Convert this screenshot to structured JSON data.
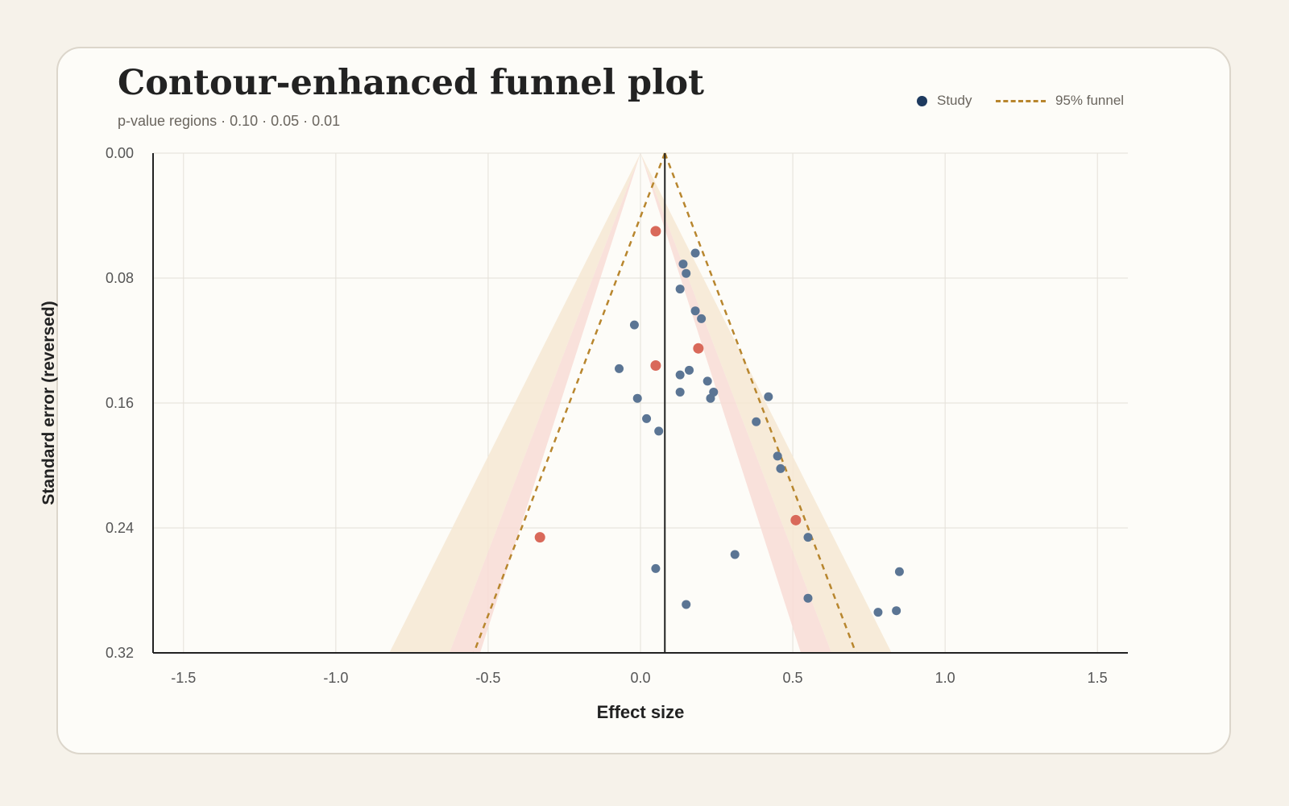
{
  "title": "Contour-enhanced funnel plot",
  "subtitle": "p-value regions · 0.10 · 0.05 · 0.01",
  "legend": {
    "study_label": "Study",
    "funnel_label": "95% funnel"
  },
  "colors": {
    "study": "#5b7594",
    "study_legend": "#1e3a5f",
    "highlight": "#d9695a",
    "funnel": "#b8862e",
    "region_outer": "#f6e7d4",
    "region_inner": "#f8dcd6",
    "grid": "#e4e0d8",
    "axis": "#222222"
  },
  "chart_data": {
    "type": "scatter",
    "title": "Contour-enhanced funnel plot",
    "subtitle": "p-value regions · 0.10 · 0.05 · 0.01",
    "xlabel": "Effect size",
    "ylabel": "Standard error (reversed)",
    "xlim": [
      -1.6,
      1.6
    ],
    "ylim": [
      0,
      0.32
    ],
    "y_reversed": true,
    "xticks": [
      -1.5,
      -1.0,
      -0.5,
      0.0,
      0.5,
      1.0,
      1.5
    ],
    "xtick_labels": [
      "-1.5",
      "-1.0",
      "-0.5",
      "0.0",
      "0.5",
      "1.0",
      "1.5"
    ],
    "yticks": [
      0,
      0.08,
      0.16,
      0.24,
      0.32
    ],
    "ytick_labels": [
      "0.00",
      "0.08",
      "0.16",
      "0.24",
      "0.32"
    ],
    "grid": true,
    "legend_position": "top-right",
    "pooled_effect": 0.08,
    "funnel_level": "95%",
    "contour_levels": [
      0.1,
      0.05,
      0.01
    ],
    "series": [
      {
        "name": "Study",
        "points": [
          [
            0.05,
            0.05
          ],
          [
            0.18,
            0.064
          ],
          [
            0.14,
            0.071
          ],
          [
            0.15,
            0.077
          ],
          [
            0.13,
            0.087
          ],
          [
            0.18,
            0.101
          ],
          [
            0.2,
            0.106
          ],
          [
            -0.02,
            0.11
          ],
          [
            0.19,
            0.125
          ],
          [
            0.05,
            0.136
          ],
          [
            -0.07,
            0.138
          ],
          [
            0.16,
            0.139
          ],
          [
            0.13,
            0.142
          ],
          [
            0.22,
            0.146
          ],
          [
            0.13,
            0.153
          ],
          [
            0.24,
            0.153
          ],
          [
            0.23,
            0.157
          ],
          [
            0.42,
            0.156
          ],
          [
            -0.01,
            0.157
          ],
          [
            0.38,
            0.172
          ],
          [
            0.02,
            0.17
          ],
          [
            0.06,
            0.178
          ],
          [
            0.45,
            0.194
          ],
          [
            0.46,
            0.202
          ],
          [
            0.51,
            0.235
          ],
          [
            0.55,
            0.246
          ],
          [
            -0.33,
            0.246
          ],
          [
            0.31,
            0.257
          ],
          [
            0.05,
            0.266
          ],
          [
            0.85,
            0.268
          ],
          [
            0.55,
            0.285
          ],
          [
            0.15,
            0.289
          ],
          [
            0.84,
            0.293
          ],
          [
            0.78,
            0.294
          ]
        ],
        "highlighted_indices": [
          0,
          8,
          9,
          24,
          26
        ]
      }
    ]
  }
}
